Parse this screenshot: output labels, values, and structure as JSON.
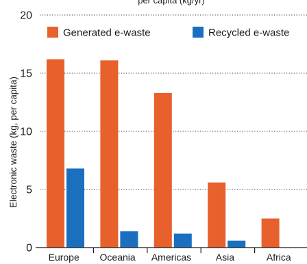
{
  "chart_data": {
    "type": "bar",
    "title": "",
    "top_text_fragment": "per capita (kg/yr)",
    "xlabel": "",
    "ylabel": "Electronic waste (kg, per capita)",
    "ylim": [
      0,
      20
    ],
    "yticks": [
      0,
      5,
      10,
      15,
      20
    ],
    "grid": "horizontal dotted",
    "legend_position": "top",
    "categories": [
      "Europe",
      "Oceania",
      "Americas",
      "Asia",
      "Africa"
    ],
    "series": [
      {
        "name": "Generated e-waste",
        "color": "#e8602c",
        "values": [
          16.2,
          16.1,
          13.3,
          5.6,
          2.5
        ]
      },
      {
        "name": "Recycled e-waste",
        "color": "#1a6fbf",
        "values": [
          6.8,
          1.4,
          1.2,
          0.6,
          null
        ]
      }
    ]
  }
}
